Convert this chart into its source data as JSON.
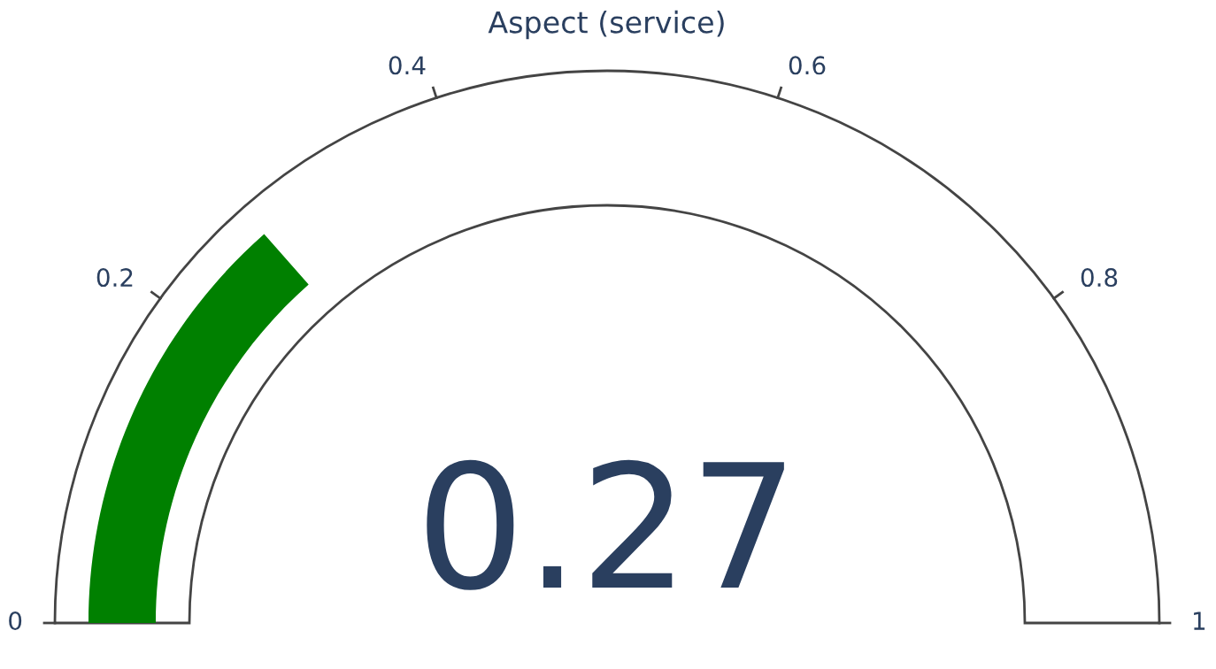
{
  "chart_data": {
    "type": "other",
    "title": "Aspect (service)",
    "values": [
      0.27
    ],
    "color": "#008000",
    "annotations": [
      "0",
      "0.2",
      "0.4",
      "0.6",
      "0.8",
      "1"
    ],
    "data_labels": true
  }
}
